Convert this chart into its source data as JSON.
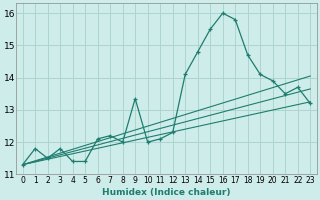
{
  "xlabel": "Humidex (Indice chaleur)",
  "bg_color": "#ceecea",
  "grid_color": "#aed4d0",
  "line_color": "#1e7d6e",
  "xlim": [
    -0.5,
    23.5
  ],
  "ylim": [
    11.0,
    16.3
  ],
  "xticks": [
    0,
    1,
    2,
    3,
    4,
    5,
    6,
    7,
    8,
    9,
    10,
    11,
    12,
    13,
    14,
    15,
    16,
    17,
    18,
    19,
    20,
    21,
    22,
    23
  ],
  "yticks": [
    11,
    12,
    13,
    14,
    15,
    16
  ],
  "line1_x": [
    0,
    1,
    2,
    3,
    4,
    5,
    6,
    7,
    8,
    9,
    10,
    11,
    12,
    13,
    14,
    15,
    16,
    17,
    18,
    19,
    20,
    21,
    22,
    23
  ],
  "line1_y": [
    11.3,
    11.8,
    11.5,
    11.8,
    11.4,
    11.4,
    12.1,
    12.2,
    12.0,
    13.35,
    12.0,
    12.1,
    12.3,
    14.1,
    14.8,
    15.5,
    16.0,
    15.8,
    14.7,
    14.1,
    13.9,
    13.5,
    13.7,
    13.2
  ],
  "straight_lines": [
    {
      "x0": 0,
      "y0": 11.3,
      "x1": 23,
      "y1": 13.25
    },
    {
      "x0": 0,
      "y0": 11.3,
      "x1": 23,
      "y1": 14.05
    },
    {
      "x0": 0,
      "y0": 11.3,
      "x1": 23,
      "y1": 13.65
    }
  ]
}
